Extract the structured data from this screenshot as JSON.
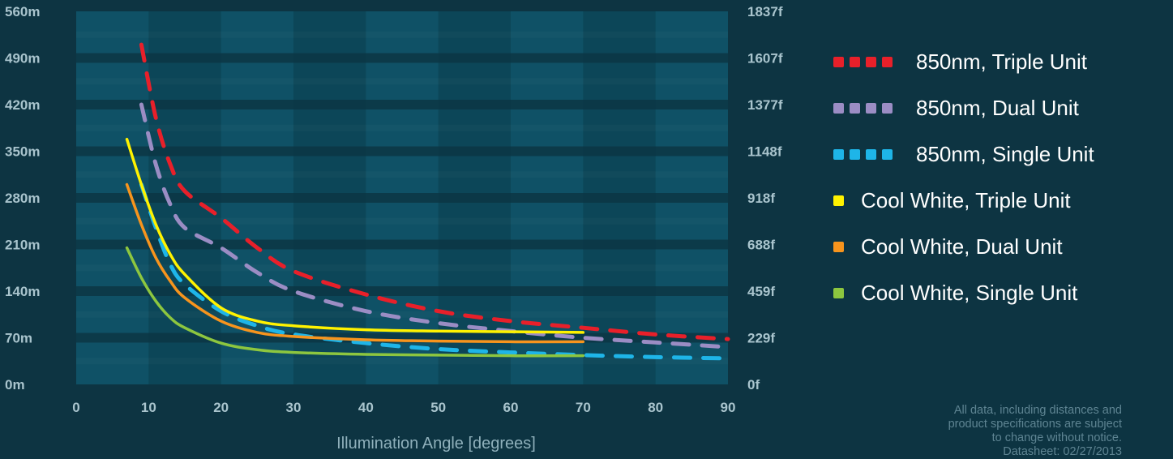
{
  "chart_data": {
    "type": "line",
    "xlabel": "Illumination Angle [degrees]",
    "x_ticks": [
      "0",
      "10",
      "20",
      "30",
      "40",
      "50",
      "60",
      "70",
      "80",
      "90"
    ],
    "y_ticks_left": [
      "0m",
      "70m",
      "140m",
      "210m",
      "280m",
      "350m",
      "420m",
      "490m",
      "560m"
    ],
    "y_ticks_right": [
      "0f",
      "229f",
      "459f",
      "688f",
      "918f",
      "1148f",
      "1377f",
      "1607f",
      "1837f"
    ],
    "xlim": [
      0,
      90
    ],
    "ylim": [
      0,
      560
    ],
    "ylabel": "",
    "grid": "alternating bands",
    "legend_position": "right",
    "series": [
      {
        "name": "850nm, Triple Unit",
        "color": "#e8202a",
        "style": "dashed",
        "x": [
          9,
          11,
          13,
          15,
          20,
          25,
          30,
          40,
          50,
          60,
          70,
          80,
          90
        ],
        "y": [
          510,
          400,
          330,
          290,
          250,
          205,
          170,
          135,
          110,
          95,
          85,
          75,
          68
        ]
      },
      {
        "name": "850nm, Dual Unit",
        "color": "#9b8dc4",
        "style": "dashed",
        "x": [
          9,
          11,
          13,
          15,
          20,
          25,
          30,
          40,
          50,
          60,
          70,
          80,
          90
        ],
        "y": [
          420,
          330,
          270,
          235,
          205,
          168,
          140,
          110,
          92,
          80,
          70,
          63,
          56
        ]
      },
      {
        "name": "850nm, Single Unit",
        "color": "#1eb5e8",
        "style": "dashed",
        "x": [
          9,
          11,
          13,
          15,
          20,
          25,
          30,
          40,
          50,
          60,
          70,
          80,
          90
        ],
        "y": [
          300,
          235,
          180,
          150,
          110,
          88,
          75,
          62,
          53,
          48,
          44,
          41,
          39
        ]
      },
      {
        "name": "Cool White, Triple Unit",
        "color": "#fff200",
        "style": "solid",
        "x": [
          7,
          9,
          11,
          13,
          15,
          20,
          25,
          30,
          40,
          50,
          60,
          70
        ],
        "y": [
          368,
          300,
          240,
          195,
          165,
          115,
          95,
          88,
          82,
          80,
          79,
          78
        ]
      },
      {
        "name": "Cool White, Dual Unit",
        "color": "#f7941d",
        "style": "solid",
        "x": [
          7,
          9,
          11,
          13,
          15,
          20,
          25,
          30,
          40,
          50,
          60,
          70
        ],
        "y": [
          300,
          240,
          190,
          155,
          130,
          95,
          78,
          72,
          67,
          65,
          64,
          64
        ]
      },
      {
        "name": "Cool White, Single Unit",
        "color": "#8dc63f",
        "style": "solid",
        "x": [
          7,
          9,
          11,
          13,
          15,
          20,
          25,
          30,
          40,
          50,
          60,
          70
        ],
        "y": [
          205,
          160,
          125,
          100,
          85,
          62,
          52,
          48,
          45,
          44,
          43,
          43
        ]
      }
    ]
  },
  "note_lines": [
    "All data, including distances and",
    "product specifications are subject",
    "to change without notice.",
    "Datasheet: 02/27/2013"
  ],
  "colors": {
    "background": "#0d3442",
    "band_light": "#0f5166",
    "band_dark": "#0c4658",
    "gridline": "#0c3644",
    "tick_text": "#a9c4cd"
  }
}
